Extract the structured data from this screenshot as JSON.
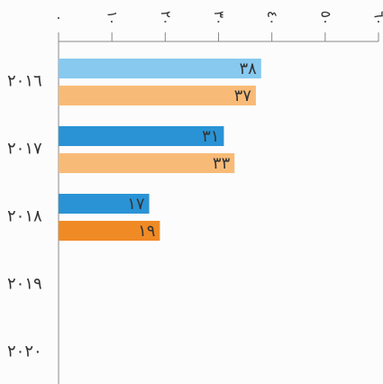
{
  "chart_data": {
    "type": "bar",
    "orientation": "horizontal",
    "categories": [
      "٢٠١٦",
      "٢٠١٧",
      "٢٠١٨",
      "٢٠١٩",
      "٢٠٢٠"
    ],
    "series": [
      {
        "values": [
          38,
          31,
          17,
          null,
          null
        ],
        "value_labels": [
          "٣٨",
          "٣١",
          "١٧",
          null,
          null
        ],
        "colors": [
          "#87c9ef",
          "#2a93d5",
          "#2a93d5",
          null,
          null
        ]
      },
      {
        "values": [
          37,
          33,
          19,
          null,
          null
        ],
        "value_labels": [
          "٣٧",
          "٣٣",
          "١٩",
          null,
          null
        ],
        "colors": [
          "#f8bb77",
          "#f8bb77",
          "#f08a24",
          null,
          null
        ]
      }
    ],
    "xlim": [
      0,
      60
    ],
    "xticks": [
      {
        "value": 0,
        "label": "٠"
      },
      {
        "value": 10,
        "label": "١٠"
      },
      {
        "value": 20,
        "label": "٢٠"
      },
      {
        "value": 30,
        "label": "٣٠"
      },
      {
        "value": 40,
        "label": "٤٠"
      },
      {
        "value": 50,
        "label": "٥٠"
      },
      {
        "value": 60,
        "label": "٦٠"
      }
    ],
    "grid": false
  }
}
